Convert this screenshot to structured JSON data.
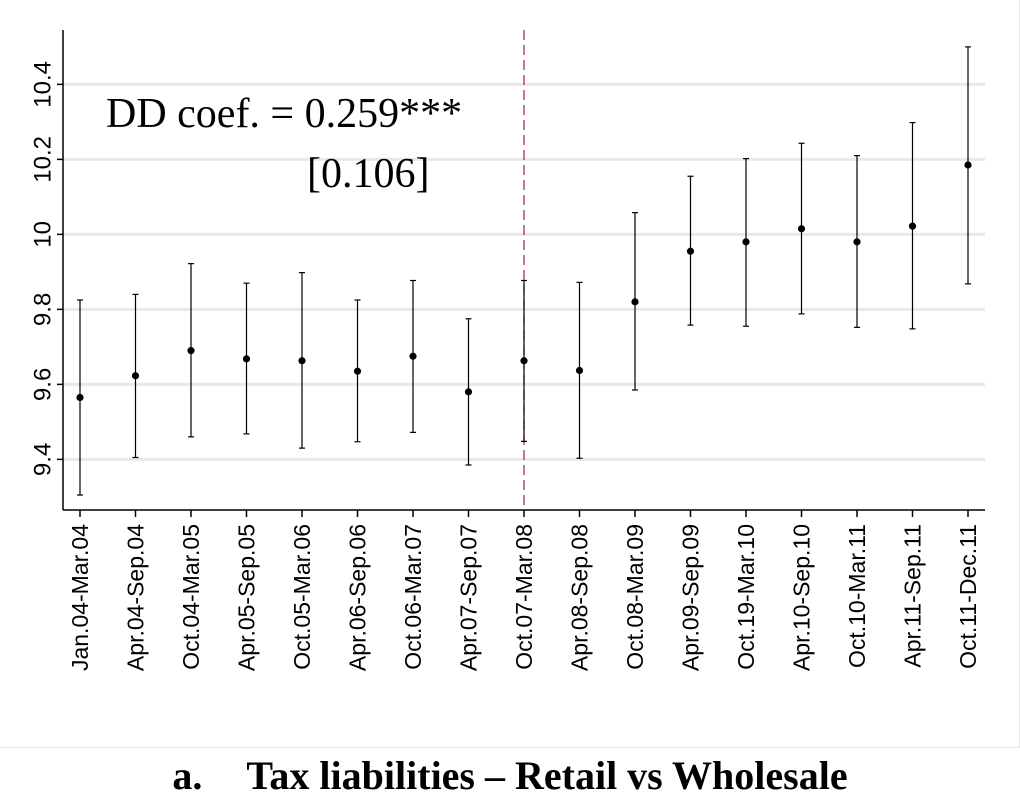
{
  "chart_data": {
    "type": "scatter",
    "subtype": "point-with-error-bars",
    "title": "",
    "xlabel": "",
    "ylabel": "",
    "categories": [
      "Jan.04-Mar.04",
      "Apr.04-Sep.04",
      "Oct.04-Mar.05",
      "Apr.05-Sep.05",
      "Oct.05-Mar.06",
      "Apr.06-Sep.06",
      "Oct.06-Mar.07",
      "Apr.07-Sep.07",
      "Oct.07-Mar.08",
      "Apr.08-Sep.08",
      "Oct.08-Mar.09",
      "Apr.09-Sep.09",
      "Oct.19-Mar.10",
      "Apr.10-Sep.10",
      "Oct.10-Mar.11",
      "Apr.11-Sep.11",
      "Oct.11-Dec.11"
    ],
    "values": [
      9.565,
      9.623,
      9.69,
      9.668,
      9.663,
      9.635,
      9.675,
      9.58,
      9.663,
      9.637,
      9.82,
      9.955,
      9.98,
      10.015,
      9.98,
      10.022,
      10.185
    ],
    "ci_low": [
      9.305,
      9.405,
      9.46,
      9.468,
      9.43,
      9.447,
      9.472,
      9.385,
      9.448,
      9.403,
      9.585,
      9.758,
      9.755,
      9.788,
      9.752,
      9.748,
      9.868
    ],
    "ci_high": [
      9.825,
      9.84,
      9.922,
      9.87,
      9.898,
      9.825,
      9.877,
      9.775,
      9.877,
      9.872,
      10.058,
      10.155,
      10.202,
      10.243,
      10.21,
      10.298,
      10.5
    ],
    "ylim": [
      9.265,
      10.545
    ],
    "yticks": [
      9.4,
      9.6,
      9.8,
      10,
      10.2,
      10.4
    ],
    "ytick_labels": [
      "9.4",
      "9.6",
      "9.8",
      "10",
      "10.2",
      "10.4"
    ],
    "grid": "horizontal",
    "reference_line": {
      "category": "Oct.07-Mar.08",
      "style": "dashed",
      "color": "#b03040"
    },
    "annotation": {
      "line1": "DD coef. = 0.259***",
      "line2": "[0.106]"
    },
    "marker_color": "#000000",
    "gridline_color": "#e8e8e8"
  },
  "caption": {
    "letter": "a.",
    "text": "Tax liabilities – Retail vs Wholesale"
  }
}
